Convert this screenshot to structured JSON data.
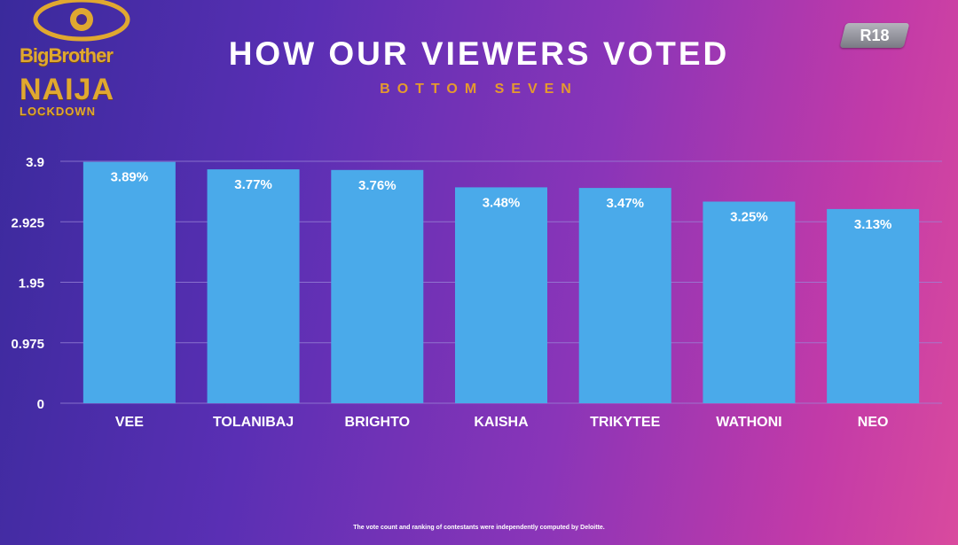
{
  "brand": {
    "logo_line1": "BigBrother",
    "logo_line2": "NAIJA",
    "logo_line3": "LOCKDOWN",
    "gold": "#e0a830",
    "icon": "eye-icon"
  },
  "badge": {
    "label": "R18"
  },
  "colors": {
    "bar": "#4aaaea",
    "grid": "#9a86d8",
    "subtitle": "#e59a2e"
  },
  "chart_data": {
    "type": "bar",
    "title": "HOW OUR VIEWERS VOTED",
    "subtitle": "BOTTOM SEVEN",
    "xlabel": "",
    "ylabel": "",
    "categories": [
      "VEE",
      "TOLANIBAJ",
      "BRIGHTO",
      "KAISHA",
      "TRIKYTEE",
      "WATHONI",
      "NEO"
    ],
    "values": [
      3.89,
      3.77,
      3.76,
      3.48,
      3.47,
      3.25,
      3.13
    ],
    "value_labels": [
      "3.89%",
      "3.77%",
      "3.76%",
      "3.48%",
      "3.47%",
      "3.25%",
      "3.13%"
    ],
    "ylim": [
      0,
      3.9
    ],
    "yticks": [
      0,
      0.975,
      1.95,
      2.925,
      3.9
    ],
    "ytick_labels": [
      "0",
      "0.975",
      "1.95",
      "2.925",
      "3.9"
    ],
    "grid": true,
    "legend": "none"
  },
  "footnote": "The vote count and ranking of contestants were independently computed by Deloitte."
}
